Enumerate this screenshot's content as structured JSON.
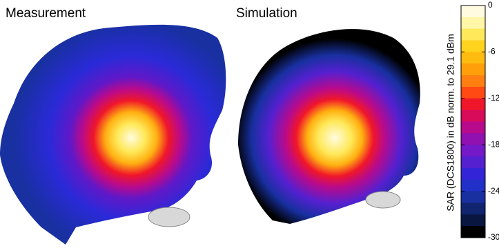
{
  "panels": [
    {
      "title": "Measurement"
    },
    {
      "title": "Simulation"
    }
  ],
  "colorbar": {
    "label": "SAR (DCS1800) in dB norm. to 29.1 dBm",
    "lim": [
      -30,
      0
    ],
    "ticks": [
      0,
      -6,
      -12,
      -18,
      -24,
      -30
    ],
    "colors": [
      "#fffbe0",
      "#fff6a8",
      "#ffe95a",
      "#ffd21e",
      "#ffbb10",
      "#ff9f0a",
      "#ff7f10",
      "#ff4a14",
      "#f0162a",
      "#d80a5a",
      "#b80a8c",
      "#9010b0",
      "#7418c8",
      "#5420d0",
      "#3424d8",
      "#2030c8",
      "#1830a0",
      "#102470",
      "#081640",
      "#000000"
    ]
  }
}
